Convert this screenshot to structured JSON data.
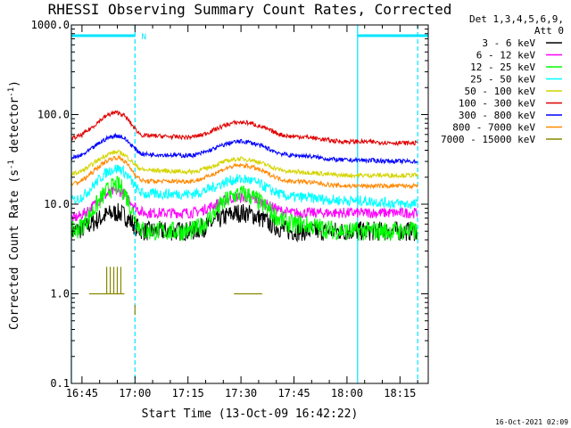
{
  "chart_data": {
    "type": "line",
    "title": "RHESSI Observing Summary Count Rates, Corrected",
    "xlabel": "Start Time (13-Oct-09 16:42:22)",
    "ylabel_main": "Corrected Count Rate (s",
    "ylabel_sup1": "-1",
    "ylabel_mid": " detector",
    "ylabel_sup2": "-1",
    "ylabel_end": ")",
    "yscale": "log",
    "ylim": [
      0.1,
      1000
    ],
    "xlim": [
      "16:42",
      "18:23"
    ],
    "xlim_minutes": [
      1002,
      1103
    ],
    "x_ticks": [
      "16:45",
      "17:00",
      "17:15",
      "17:30",
      "17:45",
      "18:00",
      "18:15"
    ],
    "y_ticks": [
      "0.1",
      "1.0",
      "10.0",
      "100.0",
      "1000.0"
    ],
    "timestamp": "16-Oct-2021 02:09",
    "legend": {
      "header1": "Det 1,3,4,5,6,9,",
      "header2": "Att 0",
      "entries": [
        {
          "label": "3 - 6 keV",
          "color": "#000000"
        },
        {
          "label": "6 - 12 keV",
          "color": "#ff00ff"
        },
        {
          "label": "12 - 25 keV",
          "color": "#00ff00"
        },
        {
          "label": "25 - 50 keV",
          "color": "#00ffff"
        },
        {
          "label": "50 - 100 keV",
          "color": "#d4d400"
        },
        {
          "label": "100 - 300 keV",
          "color": "#e00000"
        },
        {
          "label": "300 - 800 keV",
          "color": "#0000ff"
        },
        {
          "label": "800 - 7000 keV",
          "color": "#ff8800"
        },
        {
          "label": "7000 - 15000 keV",
          "color": "#888800"
        }
      ]
    },
    "night_marker_label": "N",
    "night_intervals": [
      [
        "16:42",
        "17:00"
      ],
      [
        "18:03",
        "18:23"
      ]
    ],
    "saa_lines": [
      "16:42",
      "17:00",
      "18:03",
      "18:20"
    ],
    "series": [
      {
        "name": "3 - 6 keV",
        "color": "#000000",
        "x": [
          1002,
          1015,
          1023,
          1035,
          1050,
          1065,
          1080,
          1100
        ],
        "y": [
          5,
          8,
          5,
          5,
          8,
          5,
          5,
          5
        ]
      },
      {
        "name": "6 - 12 keV",
        "color": "#ff00ff",
        "x": [
          1002,
          1015,
          1023,
          1035,
          1050,
          1065,
          1080,
          1100
        ],
        "y": [
          7,
          14,
          8,
          8,
          12,
          8,
          8,
          8
        ]
      },
      {
        "name": "12 - 25 keV",
        "color": "#00ff00",
        "x": [
          1002,
          1015,
          1023,
          1035,
          1050,
          1065,
          1080,
          1100
        ],
        "y": [
          5,
          16,
          5,
          5,
          13,
          6,
          5,
          5
        ]
      },
      {
        "name": "25 - 50 keV",
        "color": "#00ffff",
        "x": [
          1002,
          1015,
          1023,
          1035,
          1050,
          1065,
          1080,
          1100
        ],
        "y": [
          11,
          25,
          13,
          13,
          19,
          12,
          11,
          10
        ]
      },
      {
        "name": "50 - 100 keV",
        "color": "#d4d400",
        "x": [
          1002,
          1015,
          1023,
          1035,
          1050,
          1065,
          1080,
          1100
        ],
        "y": [
          22,
          38,
          24,
          23,
          32,
          23,
          21,
          21
        ]
      },
      {
        "name": "100 - 300 keV",
        "color": "#e00000",
        "x": [
          1002,
          1015,
          1023,
          1035,
          1050,
          1065,
          1080,
          1100
        ],
        "y": [
          55,
          105,
          58,
          56,
          82,
          57,
          50,
          48
        ]
      },
      {
        "name": "300 - 800 keV",
        "color": "#0000ff",
        "x": [
          1002,
          1015,
          1023,
          1035,
          1050,
          1065,
          1080,
          1100
        ],
        "y": [
          33,
          58,
          36,
          35,
          50,
          35,
          31,
          30
        ]
      },
      {
        "name": "800 - 7000 keV",
        "color": "#ff8800",
        "x": [
          1002,
          1015,
          1023,
          1035,
          1050,
          1065,
          1080,
          1100
        ],
        "y": [
          17,
          33,
          18,
          18,
          27,
          18,
          16,
          16
        ]
      },
      {
        "name": "7000 - 15000 keV",
        "color": "#888800",
        "x": [
          1007,
          1017
        ],
        "y": [
          1.0,
          1.0
        ]
      }
    ]
  }
}
